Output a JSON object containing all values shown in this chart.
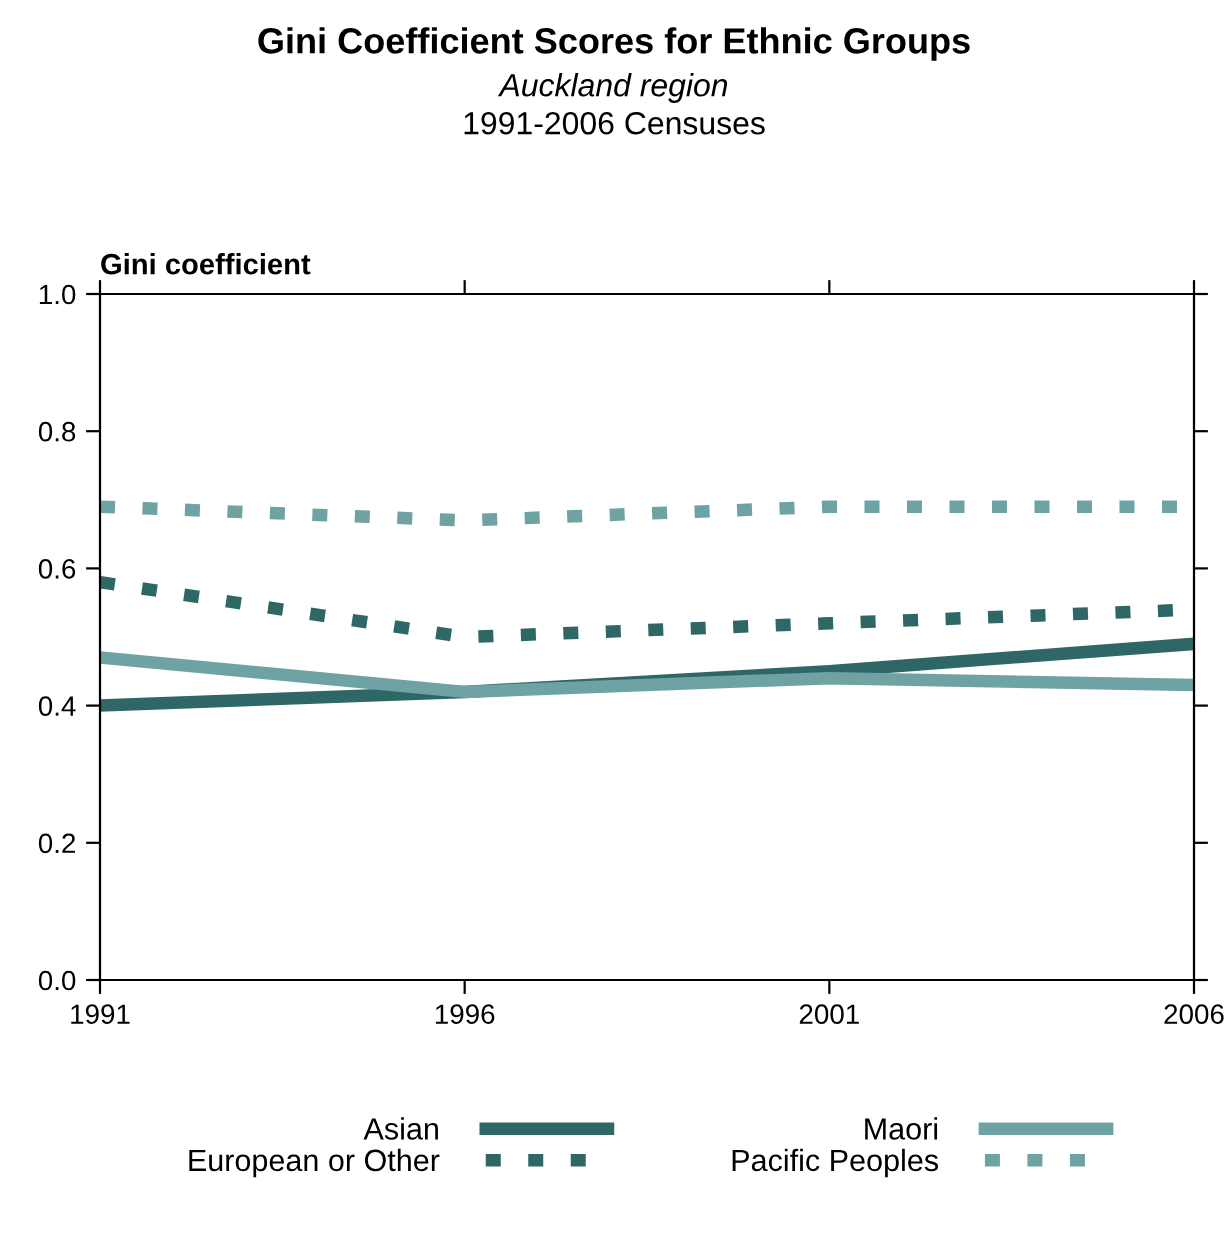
{
  "chart_data": {
    "type": "line",
    "title": "Gini Coefficient Scores for Ethnic Groups",
    "subtitle": [
      "Auckland region",
      "1991-2006 Censuses"
    ],
    "ylabel": "Gini coefficient",
    "x": [
      1991,
      1996,
      2001,
      2006
    ],
    "series": [
      {
        "name": "Asian",
        "color": "#2f6666",
        "line_style": "solid",
        "values": [
          0.4,
          0.42,
          0.45,
          0.49
        ]
      },
      {
        "name": "Maori",
        "color": "#6fa3a3",
        "line_style": "solid",
        "values": [
          0.47,
          0.42,
          0.44,
          0.43
        ]
      },
      {
        "name": "European or Other",
        "color": "#2f6666",
        "line_style": "dotted",
        "values": [
          0.58,
          0.5,
          0.52,
          0.54
        ]
      },
      {
        "name": "Pacific Peoples",
        "color": "#6fa3a3",
        "line_style": "dotted",
        "values": [
          0.69,
          0.67,
          0.69,
          0.69
        ]
      }
    ],
    "xlim": [
      1991,
      2006
    ],
    "xticks": [
      1991,
      1996,
      2001,
      2006
    ],
    "ylim": [
      0,
      1
    ],
    "yticks": [
      {
        "value": 0,
        "label": "0.0"
      },
      {
        "value": 0.2,
        "label": "0.2"
      },
      {
        "value": 0.4,
        "label": "0.4"
      },
      {
        "value": 0.6,
        "label": "0.6"
      },
      {
        "value": 0.8,
        "label": "0.8"
      },
      {
        "value": 1,
        "label": "1.0"
      }
    ],
    "grid": false,
    "legend": "bottom",
    "marker": "none"
  }
}
